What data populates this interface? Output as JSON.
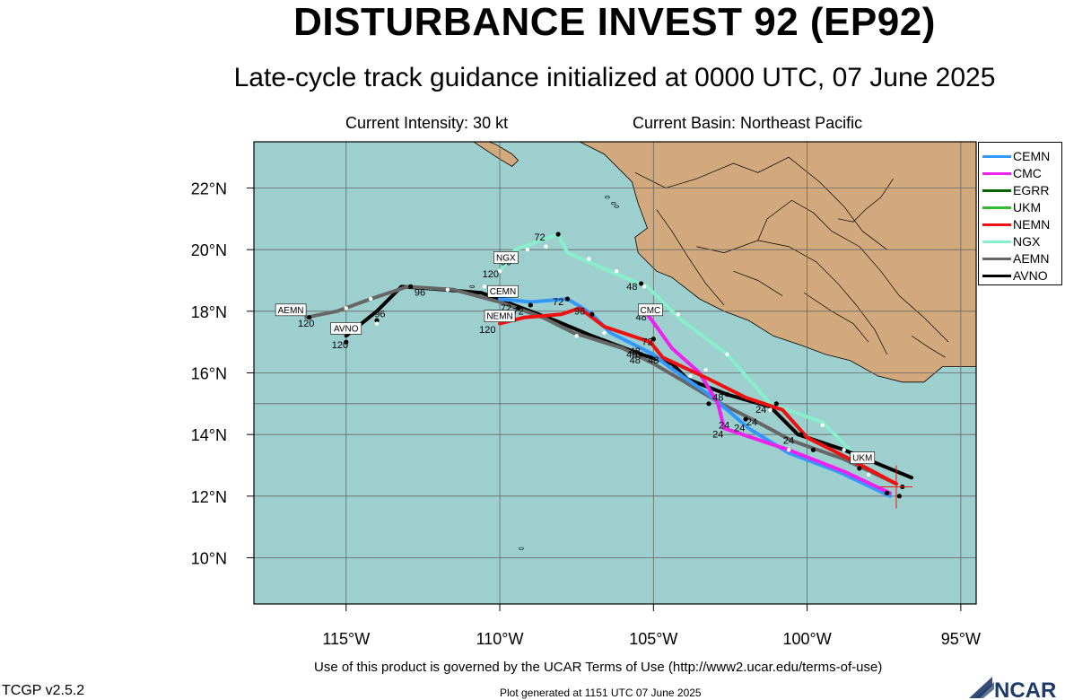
{
  "header": {
    "title": "DISTURBANCE INVEST 92 (EP92)",
    "subtitle": "Late-cycle track guidance initialized at 0000 UTC, 07 June 2025",
    "intensity": "Current Intensity: 30 kt",
    "basin": "Current Basin: Northeast Pacific"
  },
  "footer": {
    "terms": "Use of this product is governed by the UCAR Terms of Use (http://www2.ucar.edu/terms-of-use)",
    "version": "TCGP v2.5.2",
    "generated": "Plot generated at 1151 UTC   07 June 2025",
    "logo_text": "NCAR"
  },
  "map": {
    "lon_range": [
      -118,
      -94.5
    ],
    "lat_range": [
      8.5,
      23.5
    ],
    "x_ticks": [
      -115,
      -110,
      -105,
      -100,
      -95
    ],
    "y_ticks": [
      10,
      12,
      14,
      16,
      18,
      20,
      22
    ],
    "x_tick_labels": [
      "115°W",
      "110°W",
      "105°W",
      "100°W",
      "95°W"
    ],
    "y_tick_labels": [
      "10°N",
      "12°N",
      "14°N",
      "16°N",
      "18°N",
      "20°N",
      "22°N"
    ],
    "ocean_color": "#9ecfcf",
    "land_color": "#d2a97c",
    "current_position": {
      "lon": -97.1,
      "lat": 12.3
    }
  },
  "legend": {
    "items": [
      {
        "name": "CEMN",
        "color": "#3399ff"
      },
      {
        "name": "CMC",
        "color": "#ee22ee"
      },
      {
        "name": "EGRR",
        "color": "#006400"
      },
      {
        "name": "UKM",
        "color": "#33bb33"
      },
      {
        "name": "NEMN",
        "color": "#ee1111"
      },
      {
        "name": "NGX",
        "color": "#88eecc"
      },
      {
        "name": "AEMN",
        "color": "#666666"
      },
      {
        "name": "AVNO",
        "color": "#000000"
      }
    ]
  },
  "tracks": [
    {
      "model": "NGX",
      "color": "#88eecc",
      "points": [
        [
          -98.6,
          13.5
        ],
        [
          -99.5,
          14.4
        ],
        [
          -101.2,
          15.0
        ],
        [
          -102.6,
          16.6
        ],
        [
          -104.2,
          17.8
        ],
        [
          -105.2,
          18.8
        ],
        [
          -106.2,
          19.2
        ],
        [
          -107.8,
          19.9
        ],
        [
          -108.1,
          20.5
        ],
        [
          -109.5,
          20.0
        ],
        [
          -110.0,
          19.3
        ]
      ]
    },
    {
      "model": "AVNO",
      "color": "#000000",
      "points": [
        [
          -96.6,
          12.6
        ],
        [
          -98.8,
          13.5
        ],
        [
          -100.3,
          14.0
        ],
        [
          -101.2,
          14.9
        ],
        [
          -102.6,
          15.3
        ],
        [
          -103.9,
          15.8
        ],
        [
          -104.4,
          16.3
        ],
        [
          -105.4,
          16.6
        ],
        [
          -107.0,
          17.2
        ],
        [
          -108.2,
          17.7
        ],
        [
          -109.8,
          18.3
        ],
        [
          -110.6,
          18.6
        ],
        [
          -111.8,
          18.7
        ],
        [
          -113.2,
          18.8
        ],
        [
          -114.0,
          18.0
        ],
        [
          -115.0,
          17.2
        ]
      ]
    },
    {
      "model": "AEMN",
      "color": "#666666",
      "points": [
        [
          -97.1,
          12.4
        ],
        [
          -98.8,
          13.2
        ],
        [
          -100.5,
          13.8
        ],
        [
          -101.8,
          14.5
        ],
        [
          -102.8,
          15.0
        ],
        [
          -103.8,
          15.6
        ],
        [
          -105.0,
          16.3
        ],
        [
          -106.0,
          16.8
        ],
        [
          -107.6,
          17.3
        ],
        [
          -108.6,
          17.8
        ],
        [
          -110.0,
          18.3
        ],
        [
          -111.5,
          18.7
        ],
        [
          -113.0,
          18.8
        ],
        [
          -114.2,
          18.4
        ],
        [
          -115.3,
          18.0
        ],
        [
          -116.3,
          17.8
        ]
      ]
    },
    {
      "model": "CEMN",
      "color": "#3399ff",
      "points": [
        [
          -97.3,
          12.0
        ],
        [
          -99.0,
          12.8
        ],
        [
          -100.6,
          13.4
        ],
        [
          -101.9,
          14.2
        ],
        [
          -102.6,
          14.8
        ],
        [
          -103.2,
          15.3
        ],
        [
          -104.5,
          16.2
        ],
        [
          -105.0,
          16.6
        ],
        [
          -106.4,
          17.3
        ],
        [
          -107.0,
          17.9
        ],
        [
          -107.3,
          18.1
        ],
        [
          -107.8,
          18.4
        ],
        [
          -109.0,
          18.3
        ],
        [
          -110.0,
          18.4
        ]
      ]
    },
    {
      "model": "CMC",
      "color": "#ee22ee",
      "points": [
        [
          -97.3,
          12.1
        ],
        [
          -98.8,
          12.8
        ],
        [
          -100.6,
          13.5
        ],
        [
          -102.7,
          14.2
        ],
        [
          -102.9,
          15.0
        ],
        [
          -103.5,
          16.0
        ],
        [
          -104.4,
          16.8
        ],
        [
          -104.9,
          17.5
        ],
        [
          -105.2,
          17.9
        ]
      ]
    },
    {
      "model": "NEMN",
      "color": "#ee1111",
      "points": [
        [
          -97.1,
          12.4
        ],
        [
          -98.8,
          13.3
        ],
        [
          -100.0,
          13.9
        ],
        [
          -100.8,
          14.8
        ],
        [
          -102.0,
          15.2
        ],
        [
          -103.2,
          15.8
        ],
        [
          -104.7,
          16.5
        ],
        [
          -105.1,
          17.0
        ],
        [
          -106.6,
          17.5
        ],
        [
          -107.4,
          18.1
        ],
        [
          -108.0,
          17.9
        ],
        [
          -109.2,
          17.8
        ],
        [
          -110.0,
          17.6
        ]
      ]
    }
  ],
  "dots": {
    "black": [
      [
        -97.0,
        12.0
      ],
      [
        -97.4,
        12.1
      ],
      [
        -98.3,
        12.9
      ],
      [
        -99.8,
        13.5
      ],
      [
        -100.2,
        14.0
      ],
      [
        -101.0,
        15.0
      ],
      [
        -102.0,
        14.5
      ],
      [
        -102.6,
        15.3
      ],
      [
        -103.2,
        15.0
      ],
      [
        -105.0,
        17.1
      ],
      [
        -105.4,
        16.6
      ],
      [
        -107.0,
        17.9
      ],
      [
        -107.8,
        18.4
      ],
      [
        -109.0,
        18.2
      ],
      [
        -109.4,
        18.1
      ],
      [
        -105.4,
        18.9
      ],
      [
        -108.1,
        20.5
      ],
      [
        -109.5,
        19.8
      ],
      [
        -112.9,
        18.8
      ],
      [
        -114.0,
        17.7
      ],
      [
        -115.0,
        17.0
      ],
      [
        -116.2,
        17.8
      ],
      [
        -96.9,
        12.3
      ]
    ],
    "white": [
      [
        -98.0,
        12.7
      ],
      [
        -98.8,
        13.5
      ],
      [
        -99.5,
        14.3
      ],
      [
        -100.6,
        13.5
      ],
      [
        -101.2,
        14.8
      ],
      [
        -102.6,
        16.6
      ],
      [
        -103.3,
        16.1
      ],
      [
        -103.8,
        15.9
      ],
      [
        -104.2,
        17.9
      ],
      [
        -105.3,
        18.8
      ],
      [
        -106.2,
        19.3
      ],
      [
        -107.1,
        19.7
      ],
      [
        -108.5,
        20.1
      ],
      [
        -109.1,
        20.0
      ],
      [
        -110.0,
        19.3
      ],
      [
        -106.6,
        17.3
      ],
      [
        -107.5,
        17.2
      ],
      [
        -114.2,
        18.4
      ],
      [
        -115.0,
        18.1
      ],
      [
        -114.0,
        17.6
      ],
      [
        -111.7,
        18.7
      ],
      [
        -110.5,
        18.8
      ]
    ]
  },
  "track_labels": [
    {
      "text": "24",
      "lon": -101.5,
      "lat": 14.7
    },
    {
      "text": "24",
      "lon": -101.8,
      "lat": 14.3
    },
    {
      "text": "24",
      "lon": -102.2,
      "lat": 14.1
    },
    {
      "text": "24",
      "lon": -102.7,
      "lat": 14.2
    },
    {
      "text": "24",
      "lon": -102.9,
      "lat": 13.9
    },
    {
      "text": "24",
      "lon": -100.6,
      "lat": 13.7
    },
    {
      "text": "48",
      "lon": -102.9,
      "lat": 15.1
    },
    {
      "text": "48",
      "lon": -105.0,
      "lat": 16.3
    },
    {
      "text": "48",
      "lon": -105.6,
      "lat": 16.3
    },
    {
      "text": "48",
      "lon": -105.7,
      "lat": 16.5
    },
    {
      "text": "48",
      "lon": -105.6,
      "lat": 16.6
    },
    {
      "text": "48",
      "lon": -105.4,
      "lat": 17.7
    },
    {
      "text": "48",
      "lon": -105.7,
      "lat": 18.7
    },
    {
      "text": "72",
      "lon": -105.2,
      "lat": 16.9
    },
    {
      "text": "72",
      "lon": -108.1,
      "lat": 18.2
    },
    {
      "text": "72",
      "lon": -109.8,
      "lat": 18.0
    },
    {
      "text": "72",
      "lon": -109.4,
      "lat": 17.9
    },
    {
      "text": "72",
      "lon": -108.7,
      "lat": 20.3
    },
    {
      "text": "96",
      "lon": -107.4,
      "lat": 17.9
    },
    {
      "text": "96",
      "lon": -112.6,
      "lat": 18.5
    },
    {
      "text": "96",
      "lon": -113.9,
      "lat": 17.8
    },
    {
      "text": "96",
      "lon": -109.8,
      "lat": 19.5
    },
    {
      "text": "120",
      "lon": -110.3,
      "lat": 19.1
    },
    {
      "text": "120",
      "lon": -110.4,
      "lat": 17.3
    },
    {
      "text": "120",
      "lon": -115.2,
      "lat": 16.8
    },
    {
      "text": "120",
      "lon": -116.3,
      "lat": 17.5
    }
  ],
  "model_tags": [
    {
      "text": "NGX",
      "lon": -109.8,
      "lat": 19.7
    },
    {
      "text": "CEMN",
      "lon": -109.9,
      "lat": 18.6
    },
    {
      "text": "NEMN",
      "lon": -110.0,
      "lat": 17.8
    },
    {
      "text": "CMC",
      "lon": -105.1,
      "lat": 18.0
    },
    {
      "text": "AEMN",
      "lon": -116.8,
      "lat": 18.0
    },
    {
      "text": "AVNO",
      "lon": -115.0,
      "lat": 17.4
    },
    {
      "text": "UKM",
      "lon": -98.2,
      "lat": 13.2
    }
  ]
}
